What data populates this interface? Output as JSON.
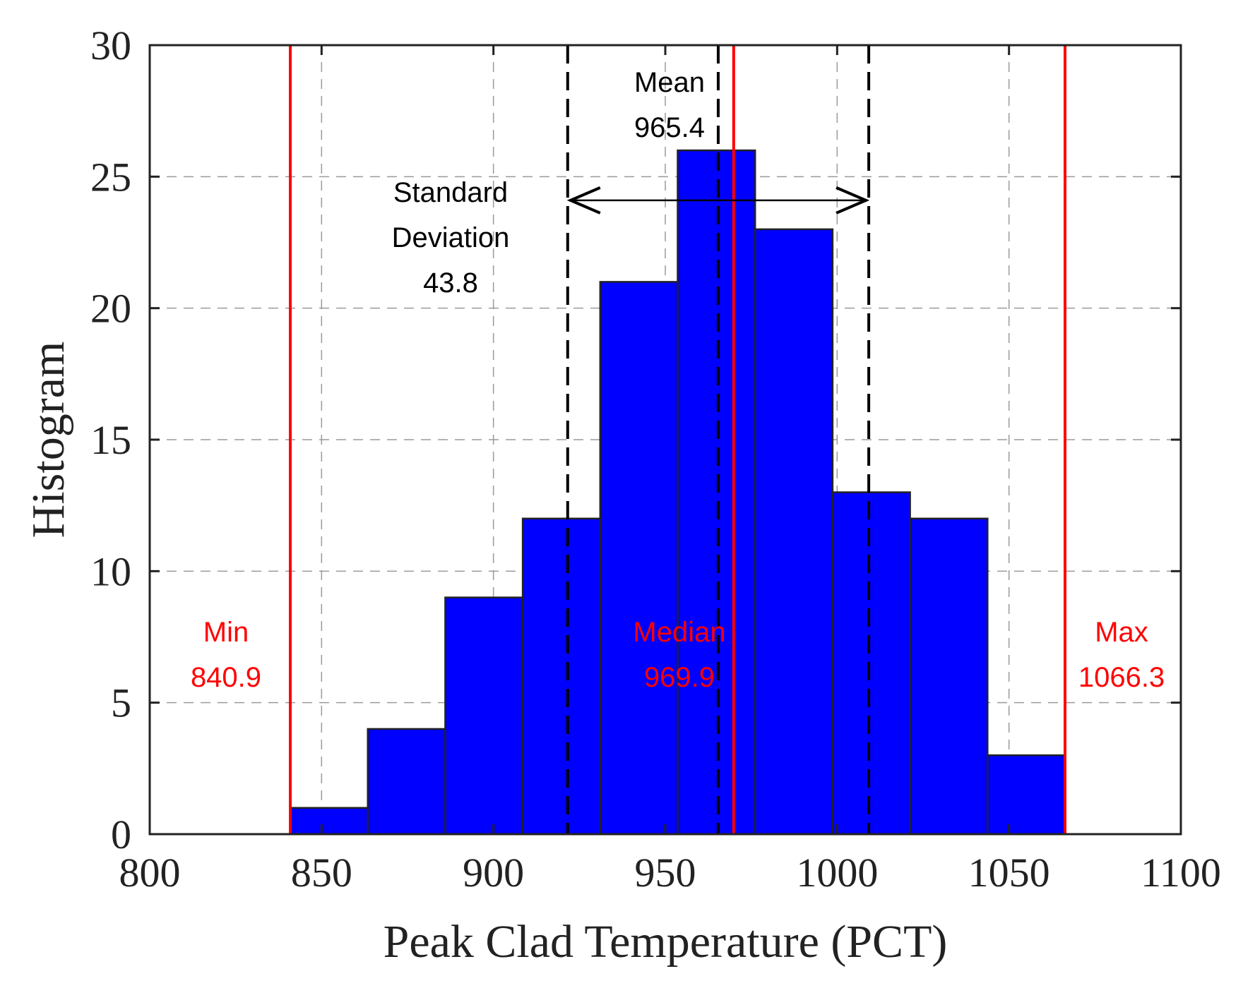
{
  "chart_data": {
    "type": "bar",
    "title": "",
    "xlabel": "Peak Clad Temperature (PCT)",
    "ylabel": "Histogram",
    "xlim": [
      800,
      1100
    ],
    "ylim": [
      0,
      30
    ],
    "xticks": [
      800,
      850,
      900,
      950,
      1000,
      1050,
      1100
    ],
    "yticks": [
      0,
      5,
      10,
      15,
      20,
      25,
      30
    ],
    "grid": "dashed",
    "bins": [
      {
        "start": 840.9,
        "end": 863.44,
        "count": 1
      },
      {
        "start": 863.44,
        "end": 885.98,
        "count": 4
      },
      {
        "start": 885.98,
        "end": 908.52,
        "count": 9
      },
      {
        "start": 908.52,
        "end": 931.06,
        "count": 12
      },
      {
        "start": 931.06,
        "end": 953.6,
        "count": 21
      },
      {
        "start": 953.6,
        "end": 976.14,
        "count": 26
      },
      {
        "start": 976.14,
        "end": 998.68,
        "count": 23
      },
      {
        "start": 998.68,
        "end": 1021.22,
        "count": 13
      },
      {
        "start": 1021.22,
        "end": 1043.76,
        "count": 12
      },
      {
        "start": 1043.76,
        "end": 1066.3,
        "count": 3
      }
    ],
    "bar_color": "#0000ff",
    "stats": {
      "min": {
        "label": "Min",
        "value": "840.9",
        "x": 840.9,
        "color": "#ff0000"
      },
      "max": {
        "label": "Max",
        "value": "1066.3",
        "x": 1066.3,
        "color": "#ff0000"
      },
      "median": {
        "label": "Median",
        "value": "969.9",
        "x": 969.9,
        "color": "#ff0000"
      },
      "mean": {
        "label": "Mean",
        "value": "965.4",
        "x": 965.4,
        "color": "#000000"
      },
      "std": {
        "label_line1": "Standard",
        "label_line2": "Deviation",
        "value": "43.8",
        "low": 921.6,
        "high": 1009.2,
        "color": "#000000"
      }
    }
  }
}
